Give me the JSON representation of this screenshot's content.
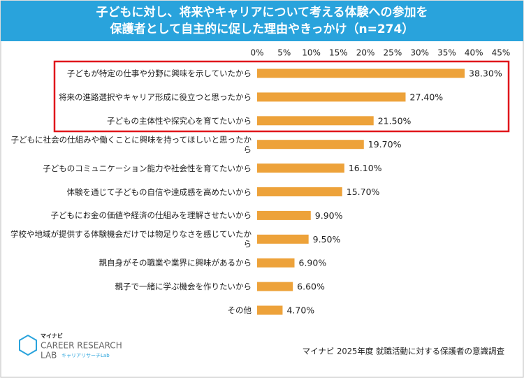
{
  "chart_data": {
    "type": "bar",
    "orientation": "horizontal",
    "title": [
      "子どもに対し、将来やキャリアについて考える体験への参加を",
      "保護者として自主的に促した理由やきっかけ（n=274）"
    ],
    "categories": [
      "子どもが特定の仕事や分野に興味を示していたから",
      "将来の進路選択やキャリア形成に役立つと思ったから",
      "子どもの主体性や探究心を育てたいから",
      "子どもに社会の仕組みや働くことに興味を持ってほしいと思ったから",
      "子どものコミュニケーション能力や社会性を育てたいから",
      "体験を通じて子どもの自信や達成感を高めたいから",
      "子どもにお金の価値や経済の仕組みを理解させたいから",
      "学校や地域が提供する体験機会だけでは物足りなさを感じていたから",
      "親自身がその職業や業界に興味があるから",
      "親子で一緒に学ぶ機会を作りたいから",
      "その他"
    ],
    "values": [
      38.3,
      27.4,
      21.5,
      19.7,
      16.1,
      15.7,
      9.9,
      9.5,
      6.9,
      6.6,
      4.7
    ],
    "value_labels": [
      "38.30%",
      "27.40%",
      "21.50%",
      "19.70%",
      "16.10%",
      "15.70%",
      "9.90%",
      "9.50%",
      "6.90%",
      "6.60%",
      "4.70%"
    ],
    "color": "#eda23a",
    "xlim": [
      0,
      45
    ],
    "xticks": [
      {
        "value": 0,
        "label": "0%"
      },
      {
        "value": 5,
        "label": "5%"
      },
      {
        "value": 10,
        "label": "10%"
      },
      {
        "value": 15,
        "label": "15%"
      },
      {
        "value": 20,
        "label": "20%"
      },
      {
        "value": 25,
        "label": "25%"
      },
      {
        "value": 30,
        "label": "30%"
      },
      {
        "value": 35,
        "label": "35%"
      },
      {
        "value": 40,
        "label": "40%"
      },
      {
        "value": 45,
        "label": "45%"
      }
    ],
    "grid": false,
    "logo": [
      "マイナビ",
      "CAREER RESEARCH",
      "LAB",
      "キャリアリサーチLab"
    ],
    "source": "マイナビ 2025年度 就職活動に対する保護者の意識調査"
  }
}
